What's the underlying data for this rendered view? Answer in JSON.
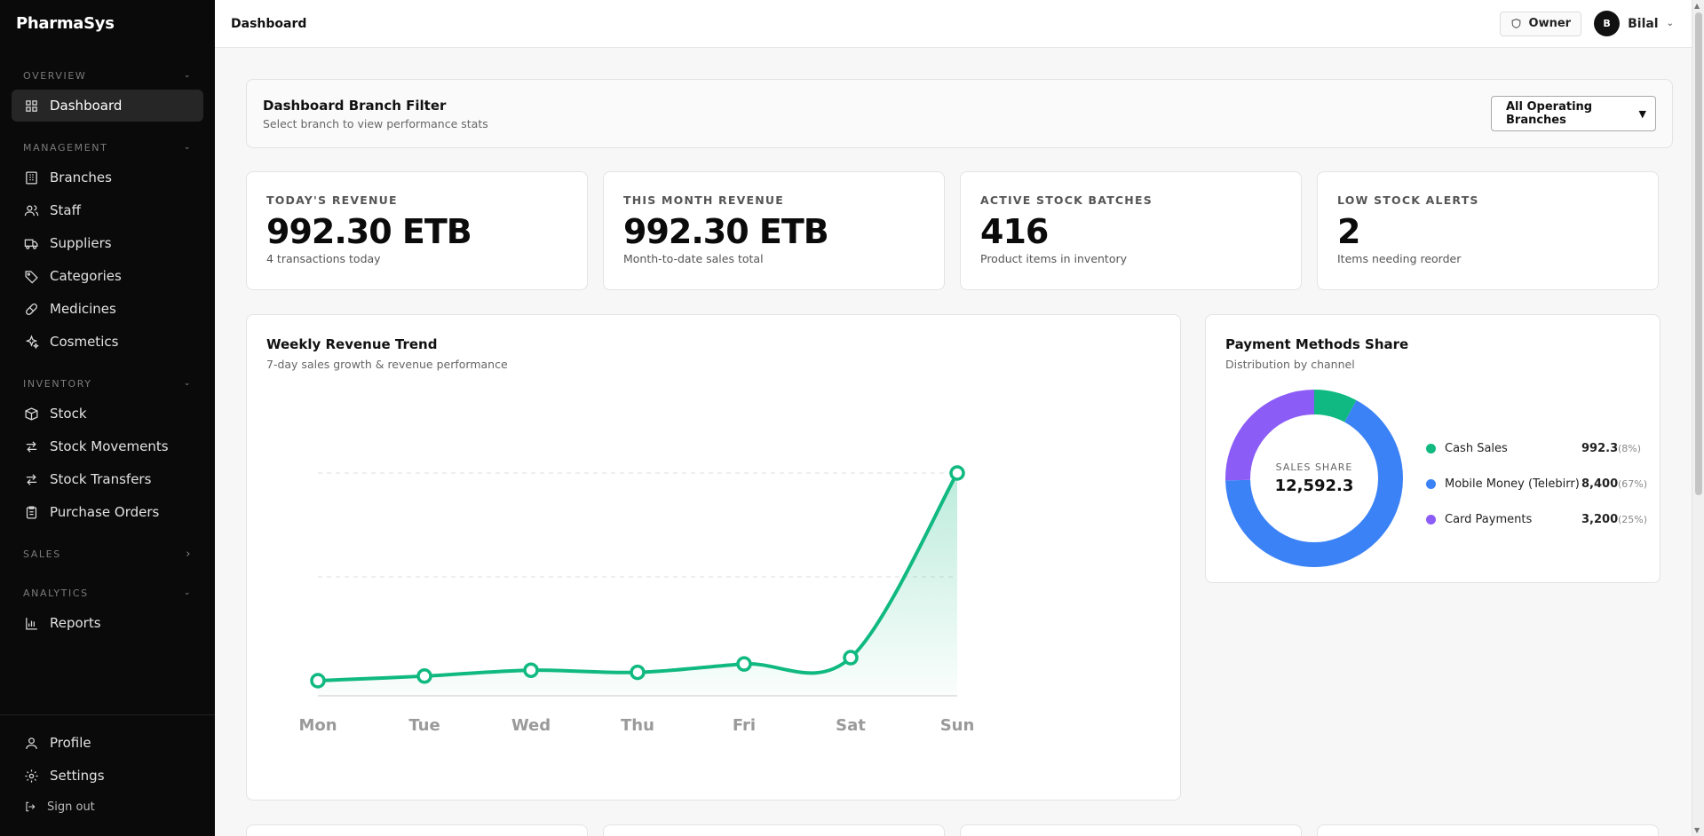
{
  "app": {
    "brand": "PharmaSys"
  },
  "sidebar": {
    "sections": [
      {
        "label": "OVERVIEW",
        "items": [
          {
            "label": "Dashboard",
            "icon": "grid-icon",
            "active": true
          }
        ]
      },
      {
        "label": "MANAGEMENT",
        "items": [
          {
            "label": "Branches",
            "icon": "building-icon"
          },
          {
            "label": "Staff",
            "icon": "users-icon"
          },
          {
            "label": "Suppliers",
            "icon": "truck-icon"
          },
          {
            "label": "Categories",
            "icon": "tag-icon"
          },
          {
            "label": "Medicines",
            "icon": "pill-icon"
          },
          {
            "label": "Cosmetics",
            "icon": "sparkles-icon"
          }
        ]
      },
      {
        "label": "INVENTORY",
        "items": [
          {
            "label": "Stock",
            "icon": "box-icon"
          },
          {
            "label": "Stock Movements",
            "icon": "arrows-icon"
          },
          {
            "label": "Stock Transfers",
            "icon": "transfer-icon"
          },
          {
            "label": "Purchase Orders",
            "icon": "clipboard-icon"
          }
        ]
      },
      {
        "label": "SALES",
        "items": []
      },
      {
        "label": "ANALYTICS",
        "items": [
          {
            "label": "Reports",
            "icon": "bar-chart-icon"
          }
        ]
      }
    ],
    "bottom": {
      "profile": "Profile",
      "settings": "Settings",
      "signout": "Sign out"
    }
  },
  "header": {
    "title": "Dashboard",
    "role": "Owner",
    "avatar_initial": "B",
    "user_name": "Bilal"
  },
  "filter": {
    "title": "Dashboard Branch Filter",
    "subtitle": "Select branch to view performance stats",
    "selected": "All Operating Branches"
  },
  "stats": [
    {
      "label": "TODAY'S REVENUE",
      "value": "992.30 ETB",
      "sub": "4 transactions today"
    },
    {
      "label": "THIS MONTH REVENUE",
      "value": "992.30 ETB",
      "sub": "Month-to-date sales total"
    },
    {
      "label": "ACTIVE STOCK BATCHES",
      "value": "416",
      "sub": "Product items in inventory"
    },
    {
      "label": "LOW STOCK ALERTS",
      "value": "2",
      "sub": "Items needing reorder"
    }
  ],
  "trend": {
    "title": "Weekly Revenue Trend",
    "subtitle": "7-day sales growth & revenue performance"
  },
  "payments": {
    "title": "Payment Methods Share",
    "subtitle": "Distribution by channel",
    "center_label": "SALES SHARE",
    "center_value": "12,592.3",
    "items": [
      {
        "name": "Cash Sales",
        "value": "992.3",
        "pct": "(8%)",
        "color": "#10b981"
      },
      {
        "name": "Mobile Money (Telebirr)",
        "value": "8,400",
        "pct": "(67%)",
        "color": "#3b82f6"
      },
      {
        "name": "Card Payments",
        "value": "3,200",
        "pct": "(25%)",
        "color": "#8b5cf6"
      }
    ]
  },
  "chart_data": [
    {
      "type": "area",
      "categories": [
        "Mon",
        "Tue",
        "Wed",
        "Thu",
        "Fri",
        "Sat",
        "Sun"
      ],
      "series": [
        {
          "values": [
            0,
            22,
            50,
            40,
            80,
            110,
            992.3
          ],
          "color": "#10b981"
        }
      ],
      "ylim": [
        0,
        992.3
      ],
      "grid": true
    },
    {
      "type": "pie",
      "categories": [
        "Cash Sales",
        "Mobile Money (Telebirr)",
        "Card Payments"
      ],
      "values": [
        992.3,
        8400,
        3200
      ],
      "colors": [
        "#10b981",
        "#3b82f6",
        "#8b5cf6"
      ]
    }
  ]
}
